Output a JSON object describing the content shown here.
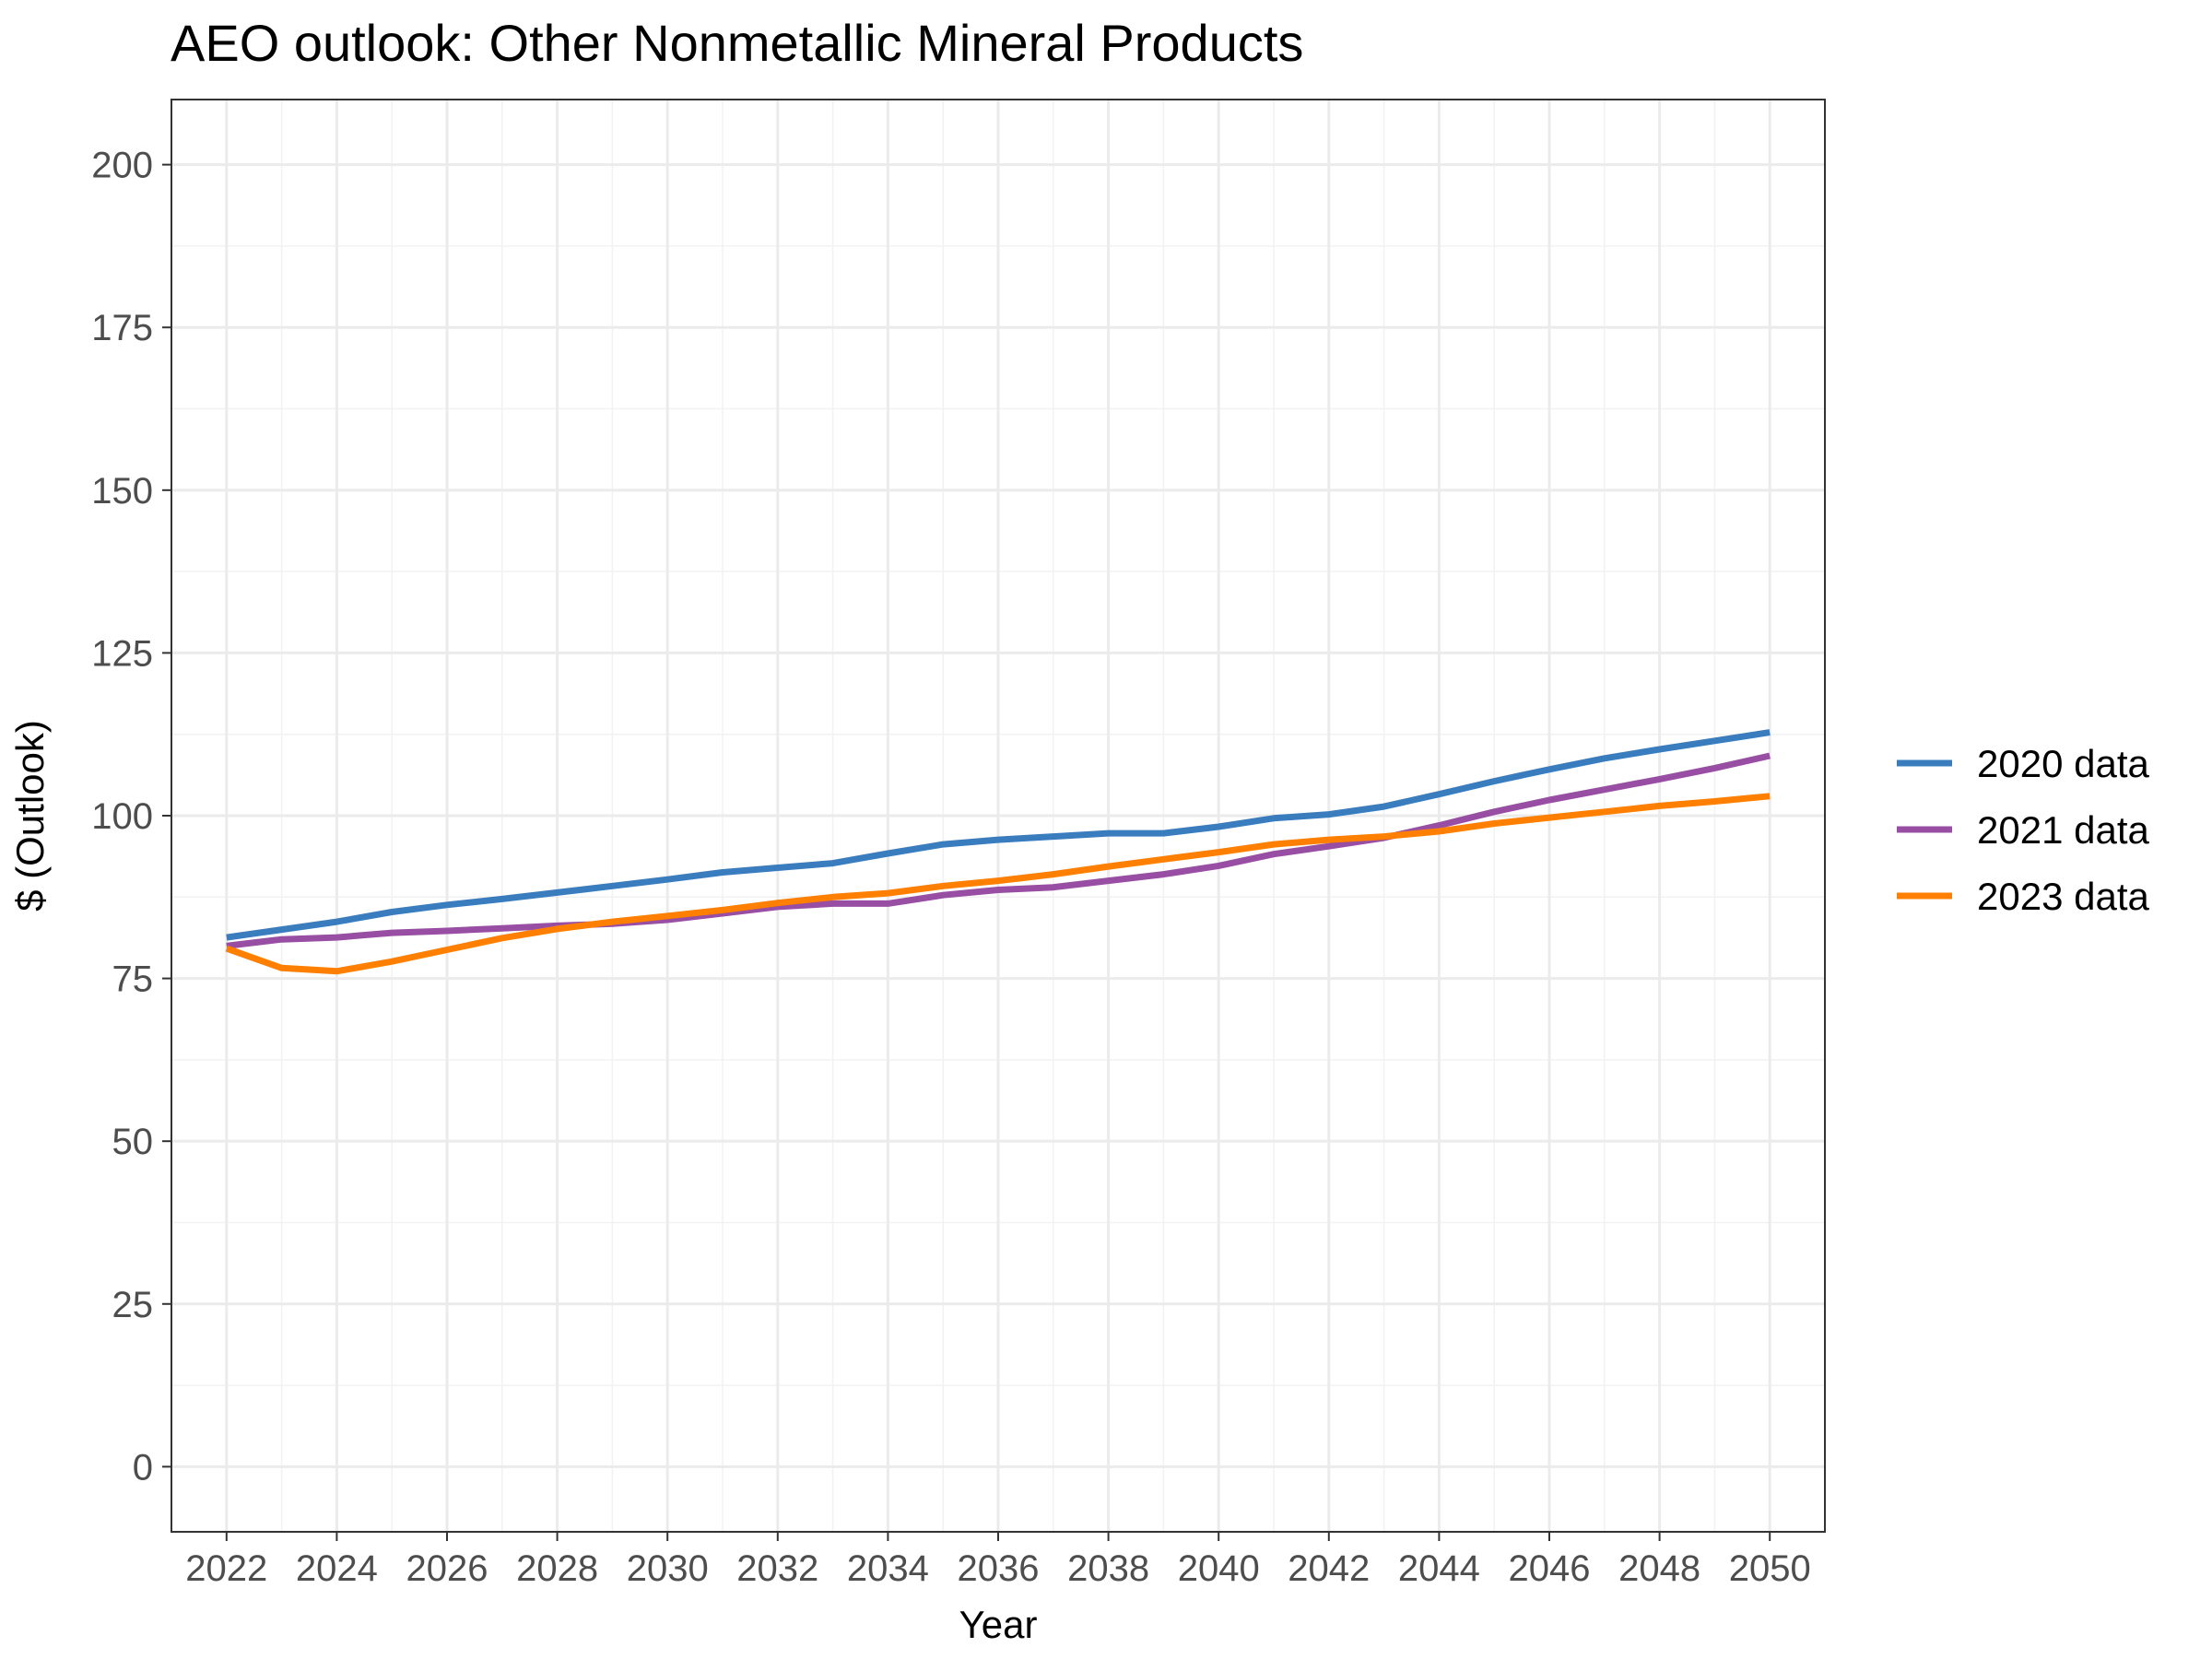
{
  "chart_data": {
    "type": "line",
    "title": "AEO outlook: Other Nonmetallic Mineral Products",
    "xlabel": "Year",
    "ylabel": "$ (Outlook)",
    "xlim": [
      2021,
      2051
    ],
    "ylim": [
      -10,
      210
    ],
    "x_ticks": [
      "2022",
      "2024",
      "2026",
      "2028",
      "2030",
      "2032",
      "2034",
      "2036",
      "2038",
      "2040",
      "2042",
      "2044",
      "2046",
      "2048",
      "2050"
    ],
    "y_ticks": [
      "0",
      "25",
      "50",
      "75",
      "100",
      "125",
      "150",
      "175",
      "200"
    ],
    "grid": true,
    "legend_position": "right",
    "x": [
      2022,
      2023,
      2024,
      2025,
      2026,
      2027,
      2028,
      2029,
      2030,
      2031,
      2032,
      2033,
      2034,
      2035,
      2036,
      2037,
      2038,
      2039,
      2040,
      2041,
      2042,
      2043,
      2044,
      2045,
      2046,
      2047,
      2048,
      2049,
      2050
    ],
    "series": [
      {
        "name": "2020 data",
        "color": "#3a7dbf",
        "values": [
          81.3,
          82.5,
          83.7,
          85.2,
          86.3,
          87.2,
          88.2,
          89.2,
          90.2,
          91.3,
          92.0,
          92.7,
          94.2,
          95.6,
          96.3,
          96.8,
          97.3,
          97.3,
          98.3,
          99.6,
          100.2,
          101.4,
          103.3,
          105.3,
          107.1,
          108.8,
          110.2,
          111.5,
          112.8
        ]
      },
      {
        "name": "2021 data",
        "color": "#984ea3",
        "values": [
          80.0,
          81.0,
          81.3,
          82.0,
          82.3,
          82.7,
          83.1,
          83.4,
          84.0,
          85.0,
          86.0,
          86.5,
          86.5,
          87.8,
          88.6,
          89.0,
          90.0,
          91.0,
          92.3,
          94.1,
          95.3,
          96.6,
          98.5,
          100.6,
          102.4,
          104.0,
          105.6,
          107.3,
          109.2
        ]
      },
      {
        "name": "2023 data",
        "color": "#ff7f00",
        "values": [
          79.6,
          76.6,
          76.1,
          77.6,
          79.4,
          81.2,
          82.6,
          83.7,
          84.6,
          85.5,
          86.6,
          87.5,
          88.1,
          89.2,
          90.0,
          91.0,
          92.2,
          93.3,
          94.4,
          95.6,
          96.3,
          96.8,
          97.6,
          98.8,
          99.7,
          100.6,
          101.5,
          102.2,
          103.0
        ]
      }
    ]
  }
}
